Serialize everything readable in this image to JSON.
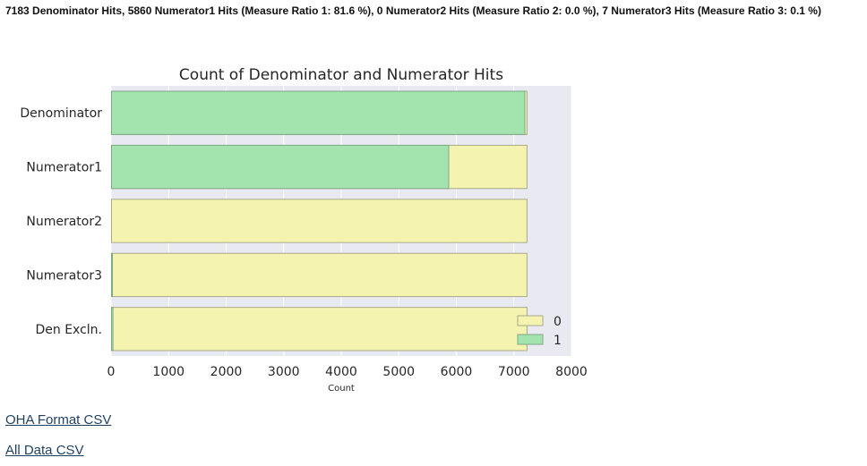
{
  "summary": "7183 Denominator Hits, 5860 Numerator1 Hits (Measure Ratio 1: 81.6 %), 0 Numerator2 Hits (Measure Ratio 2: 0.0 %), 7 Numerator3 Hits (Measure Ratio 3: 0.1 %)",
  "links": {
    "oha_csv": "OHA Format CSV",
    "all_csv": "All Data CSV"
  },
  "chart_data": {
    "type": "bar",
    "orientation": "horizontal",
    "stacked": false,
    "title": "Count of Denominator and Numerator Hits",
    "xlabel": "Count",
    "ylabel": "",
    "xlim": [
      0,
      8000
    ],
    "xticks": [
      "0",
      "1000",
      "2000",
      "3000",
      "4000",
      "5000",
      "6000",
      "7000",
      "8000"
    ],
    "categories": [
      "Denominator",
      "Numerator1",
      "Numerator2",
      "Numerator3",
      "Den Excln."
    ],
    "series": [
      {
        "name": "0",
        "color": "#f4f4b0",
        "edge": "#a9a98a",
        "values": [
          7220,
          7220,
          7220,
          7220,
          7220
        ]
      },
      {
        "name": "1",
        "color": "#a3e4ae",
        "edge": "#7fa886",
        "values": [
          7183,
          5860,
          0,
          7,
          25
        ]
      }
    ],
    "grid": true,
    "background": "#e9e9f1",
    "legend": {
      "position": "lower-right",
      "entries": [
        "0",
        "1"
      ]
    }
  }
}
